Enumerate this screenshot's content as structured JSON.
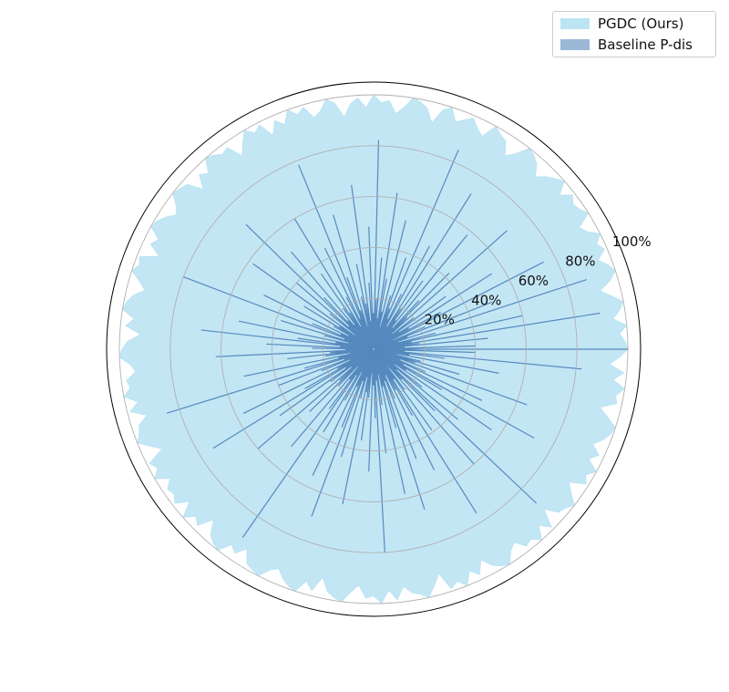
{
  "chart_data": {
    "type": "polar-area",
    "rlim": [
      0,
      100
    ],
    "r_ticks": [
      20,
      40,
      60,
      80,
      100
    ],
    "r_tick_labels": [
      "20%",
      "40%",
      "60%",
      "80%",
      "100%"
    ],
    "grid": true,
    "legend_position": "top-right",
    "theta_zero": "east",
    "theta_direction": "counterclockwise",
    "series": [
      {
        "name": "PGDC (Ours)",
        "color": "#87CEEB",
        "values": [
          100,
          99,
          97,
          100,
          95,
          98,
          100,
          96,
          92,
          97,
          100,
          98,
          95,
          99,
          97,
          100,
          96,
          94,
          100,
          98,
          97,
          99,
          95,
          100,
          98,
          96,
          93,
          97,
          99,
          100,
          95,
          92,
          97,
          98,
          100,
          94,
          96,
          99,
          97,
          95,
          100,
          98,
          92,
          97,
          99,
          100,
          96,
          93,
          98,
          97,
          100,
          95,
          99,
          97,
          92,
          98,
          100,
          96,
          94,
          99,
          97,
          100,
          95,
          98,
          93,
          99,
          97,
          100,
          96,
          92,
          98,
          97,
          99,
          100,
          95,
          97,
          92,
          98,
          99,
          100,
          96,
          94,
          97,
          99,
          100,
          95,
          97,
          92,
          99,
          98,
          100,
          96,
          93,
          97,
          99,
          100,
          95,
          98,
          92,
          97,
          99,
          100,
          96,
          94,
          98,
          97,
          100,
          95,
          99,
          93,
          97,
          98,
          100,
          96,
          92,
          99,
          97,
          100,
          95,
          98,
          97,
          99,
          94,
          100,
          96,
          98,
          92,
          97,
          99,
          100,
          95,
          97,
          93,
          98,
          99,
          100,
          96,
          94,
          97,
          99,
          100,
          95,
          98,
          92,
          97,
          99,
          100,
          96,
          93,
          98,
          97,
          100,
          95,
          99,
          94,
          97,
          98,
          100,
          96,
          92,
          99,
          97,
          100,
          95,
          98,
          93,
          97,
          99,
          100,
          96,
          94,
          98,
          97,
          100,
          95,
          99,
          92,
          97,
          98,
          100,
          96,
          93,
          99,
          97,
          100,
          95,
          98,
          94,
          97,
          99,
          100,
          96,
          92,
          98,
          97,
          100,
          95,
          99,
          93,
          97
        ]
      },
      {
        "name": "Baseline P-dis",
        "color": "#4A7FB8",
        "values": [
          100,
          40,
          12,
          45,
          18,
          90,
          15,
          60,
          25,
          10,
          88,
          14,
          50,
          22,
          8,
          75,
          30,
          16,
          55,
          12,
          35,
          20,
          9,
          70,
          18,
          42,
          26,
          11,
          58,
          14,
          33,
          19,
          72,
          10,
          46,
          24,
          13,
          85,
          17,
          38,
          22,
          9,
          52,
          15,
          28,
          62,
          12,
          36,
          20,
          82,
          14,
          48,
          26,
          11,
          65,
          18,
          34,
          21,
          9,
          55,
          16,
          30,
          78,
          13,
          44,
          23,
          10,
          60,
          17,
          36,
          20,
          12,
          50,
          15,
          28,
          70,
          13,
          40,
          22,
          9,
          58,
          16,
          32,
          18,
          11,
          48,
          14,
          26,
          80,
          12,
          38,
          20,
          10,
          54,
          15,
          30,
          68,
          13,
          42,
          24,
          11,
          62,
          17,
          34,
          19,
          9,
          52,
          14,
          28,
          85,
          12,
          40,
          22,
          10,
          57,
          16,
          31,
          74,
          13,
          45,
          21,
          11,
          60,
          18,
          35,
          20,
          9,
          50,
          15,
          29,
          90,
          12,
          38,
          23,
          10,
          55,
          16,
          33,
          70,
          13,
          44,
          20,
          11,
          62,
          17,
          36,
          19,
          9,
          48,
          14,
          27,
          80,
          12,
          41,
          22,
          10,
          58,
          15,
          32,
          66,
          13,
          46,
          21,
          11,
          53,
          18,
          30,
          76,
          14,
          39,
          20,
          9,
          60,
          16,
          34,
          88,
          12,
          43,
          24,
          10,
          56,
          15,
          31,
          72,
          13,
          47,
          22,
          11,
          64,
          17,
          35,
          19,
          9,
          50,
          14,
          28,
          82,
          12,
          40
        ]
      }
    ]
  }
}
